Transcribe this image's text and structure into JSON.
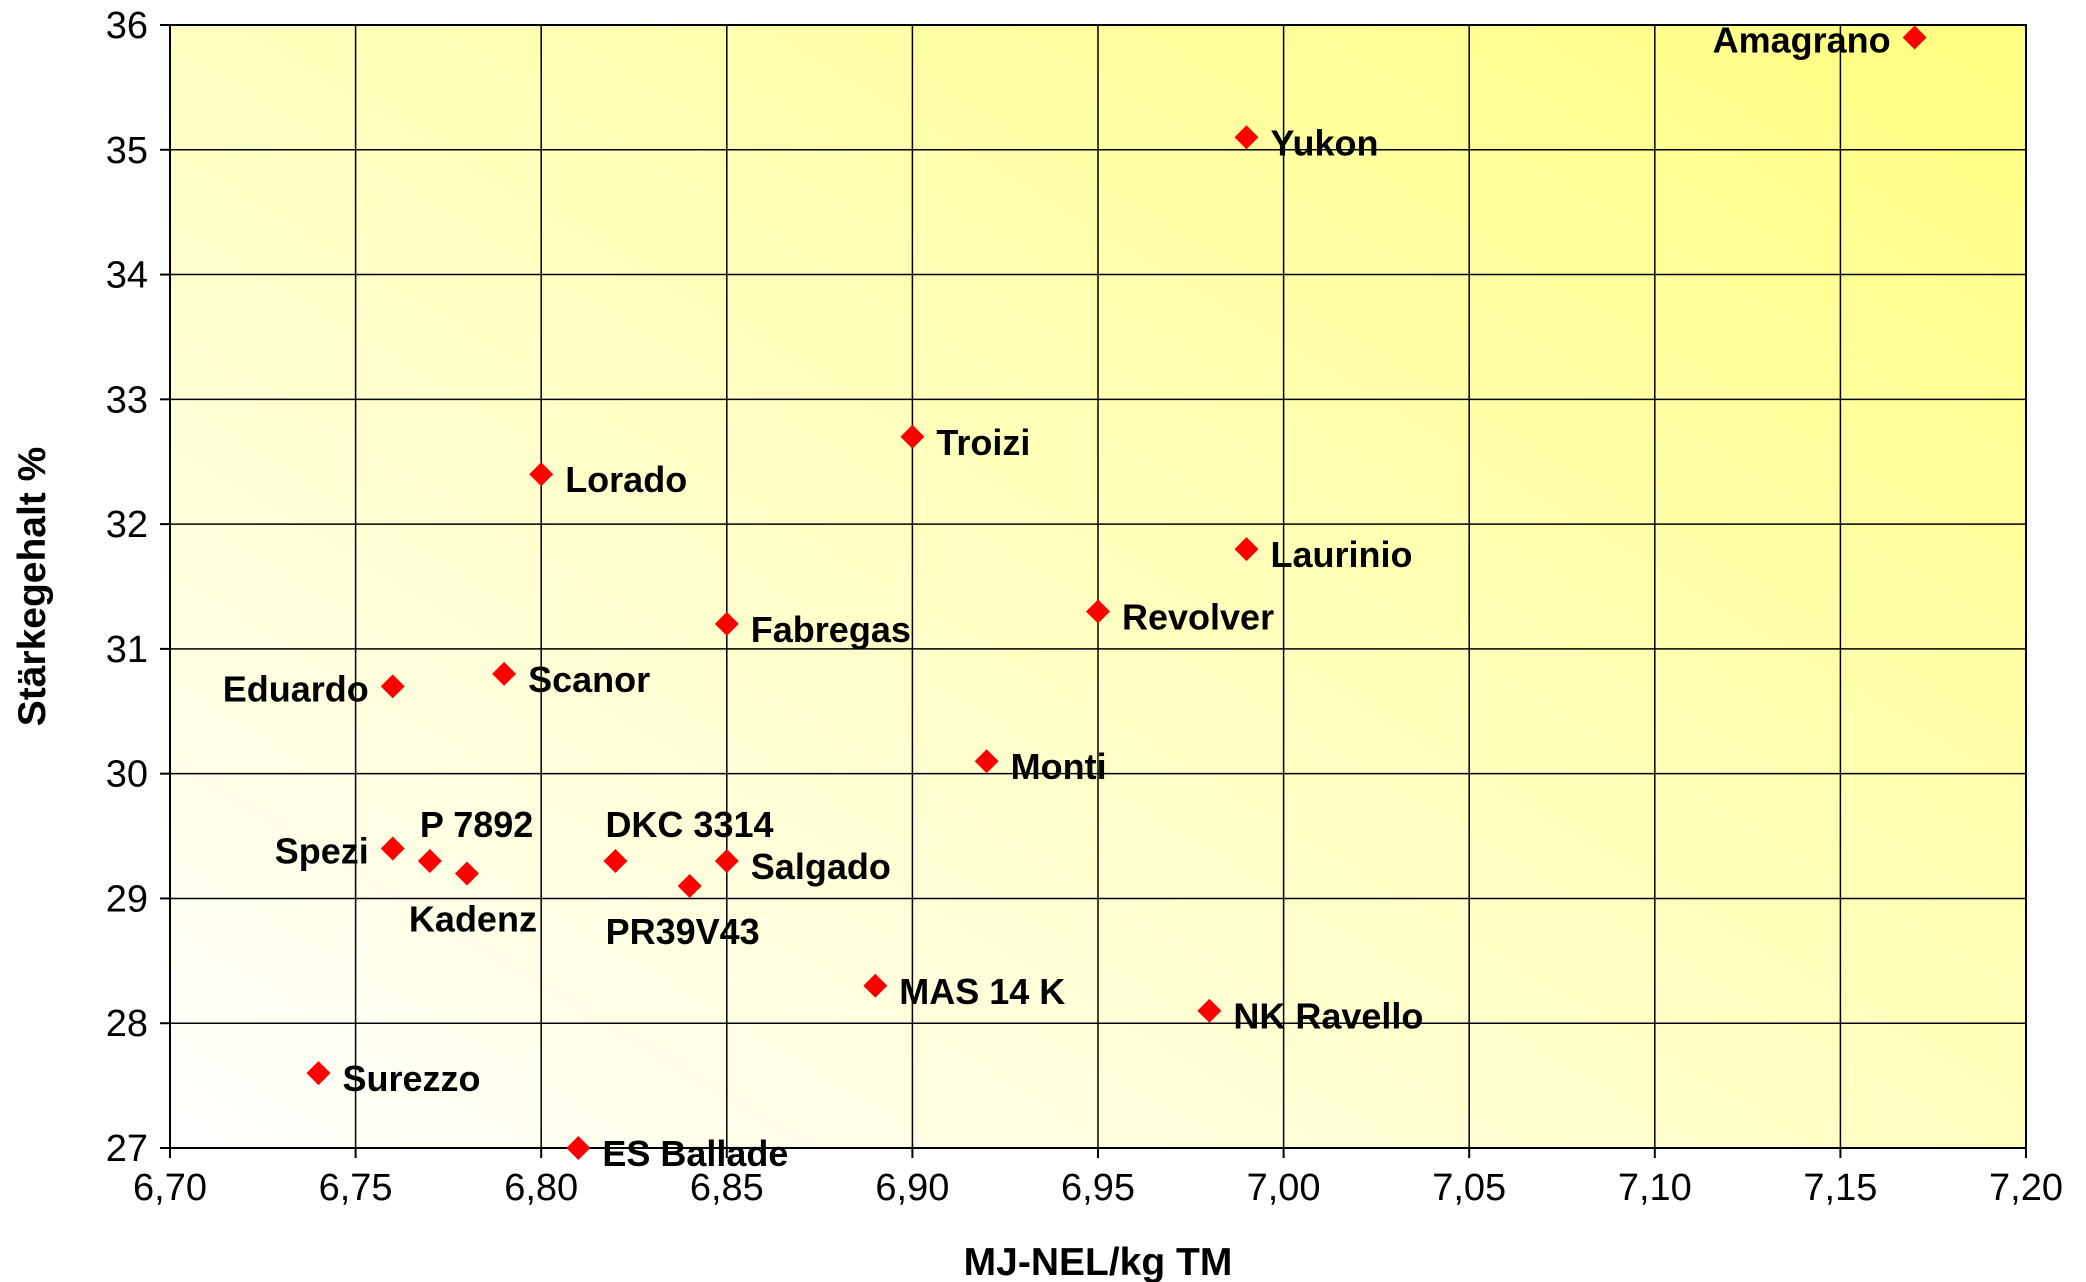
{
  "chart_data": {
    "type": "scatter",
    "xlabel": "MJ-NEL/kg TM",
    "ylabel": "Stärkegehalt %",
    "xlim": [
      6.7,
      7.2
    ],
    "ylim": [
      27,
      36
    ],
    "x_ticks": [
      "6,70",
      "6,75",
      "6,80",
      "6,85",
      "6,90",
      "6,95",
      "7,00",
      "7,05",
      "7,10",
      "7,15",
      "7,20"
    ],
    "x_tick_values": [
      6.7,
      6.75,
      6.8,
      6.85,
      6.9,
      6.95,
      7.0,
      7.05,
      7.1,
      7.15,
      7.2
    ],
    "y_ticks": [
      "27",
      "28",
      "29",
      "30",
      "31",
      "32",
      "33",
      "34",
      "35",
      "36"
    ],
    "y_tick_values": [
      27,
      28,
      29,
      30,
      31,
      32,
      33,
      34,
      35,
      36
    ],
    "grid": true,
    "legend": "none",
    "marker": "diamond",
    "marker_color": "#ff0000",
    "background_gradient": [
      "#ffffff",
      "#ffff80"
    ],
    "points": [
      {
        "label": "Amagrano",
        "x": 7.17,
        "y": 35.9,
        "label_side": "left"
      },
      {
        "label": "Yukon",
        "x": 6.99,
        "y": 35.1,
        "label_side": "right"
      },
      {
        "label": "Troizi",
        "x": 6.9,
        "y": 32.7,
        "label_side": "right"
      },
      {
        "label": "Lorado",
        "x": 6.8,
        "y": 32.4,
        "label_side": "right"
      },
      {
        "label": "Laurinio",
        "x": 6.99,
        "y": 31.8,
        "label_side": "right"
      },
      {
        "label": "Revolver",
        "x": 6.95,
        "y": 31.3,
        "label_side": "right"
      },
      {
        "label": "Fabregas",
        "x": 6.85,
        "y": 31.2,
        "label_side": "right"
      },
      {
        "label": "Scanor",
        "x": 6.79,
        "y": 30.8,
        "label_side": "right"
      },
      {
        "label": "Eduardo",
        "x": 6.76,
        "y": 30.7,
        "label_side": "left"
      },
      {
        "label": "Monti",
        "x": 6.92,
        "y": 30.1,
        "label_side": "right"
      },
      {
        "label": "Spezi",
        "x": 6.76,
        "y": 29.4,
        "label_side": "left"
      },
      {
        "label": "P 7892",
        "x": 6.77,
        "y": 29.3,
        "label_side": "above"
      },
      {
        "label": "Kadenz",
        "x": 6.78,
        "y": 29.2,
        "label_side": "below"
      },
      {
        "label": "DKC 3314",
        "x": 6.82,
        "y": 29.3,
        "label_side": "above"
      },
      {
        "label": "Salgado",
        "x": 6.85,
        "y": 29.3,
        "label_side": "right"
      },
      {
        "label": "PR39V43",
        "x": 6.84,
        "y": 29.1,
        "label_side": "below"
      },
      {
        "label": "MAS 14 K",
        "x": 6.89,
        "y": 28.3,
        "label_side": "right"
      },
      {
        "label": "NK Ravello",
        "x": 6.98,
        "y": 28.1,
        "label_side": "right"
      },
      {
        "label": "Surezzo",
        "x": 6.74,
        "y": 27.6,
        "label_side": "right"
      },
      {
        "label": "ES Ballade",
        "x": 6.81,
        "y": 27.0,
        "label_side": "right"
      }
    ]
  }
}
